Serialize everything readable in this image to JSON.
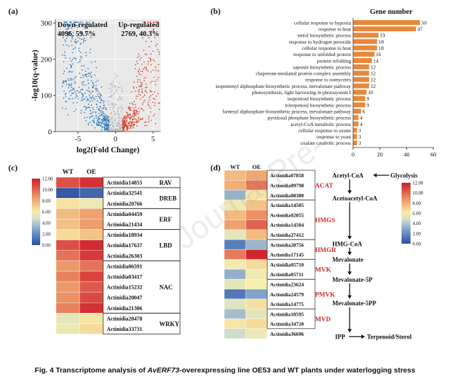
{
  "chart_data": [
    {
      "panel_label": "(a)",
      "type": "scatter",
      "xlabel": "log2(Fold Change)",
      "ylabel": "-log10(q-value)",
      "xlim": [
        -8,
        6
      ],
      "ylim": [
        0,
        310
      ],
      "xticks": [
        "-5",
        "0",
        "5"
      ],
      "yticks": [
        "0",
        "100",
        "200",
        "300"
      ],
      "groups": [
        {
          "name": "Down-regulated",
          "count": "4096",
          "percent": "59.7%",
          "color": "#2b7bc1"
        },
        {
          "name": "Up-regulated",
          "count": "2769",
          "percent": "40.3%",
          "color": "#d9452f"
        }
      ],
      "neutral_color": "#b8b8b8"
    },
    {
      "panel_label": "(b)",
      "type": "bar",
      "title": "Gene number",
      "xlim": [
        0,
        60
      ],
      "xticks": [
        "0",
        "20",
        "40",
        "60"
      ],
      "bar_color": "#e8883a",
      "categories": [
        "cellular response to hypoxia",
        "response to heat",
        "sterol biosynthetic process",
        "response to hydrogen peroxide",
        "cellular response to heat",
        "response to unfolded protein",
        "protein refolding",
        "saponin biosynthetic process",
        "chaperone-mediated protein complex assembly",
        "response to oomycetes",
        "isopentenyl diphosphate biosynthetic process, mevalonate pathway",
        "photosynthesis, light harvesting in photosystem I",
        "isoprenoid biosynthetic process",
        "triterpenoid biosynthetic process",
        "farnesyl diphosphate biosynthetic process, mevalonate pathway",
        "pyridoxal phosphate biosynthetic process",
        "acetyl-CoA metabolic process",
        "cellular response to ozone",
        "response to yeast",
        "oxalate catabolic process"
      ],
      "values": [
        50,
        47,
        19,
        18,
        18,
        16,
        14,
        12,
        12,
        12,
        12,
        10,
        9,
        9,
        6,
        4,
        4,
        3,
        3,
        3
      ]
    },
    {
      "panel_label": "(c)",
      "type": "heatmap",
      "columns": [
        "WT",
        "OE"
      ],
      "colorbar_ticks": [
        "12.00",
        "10.00",
        "8.00",
        "6.00",
        "4.00",
        "2.00",
        "0.00"
      ],
      "color_range": [
        0,
        12
      ],
      "rows": [
        {
          "gene": "Actinidia14855",
          "values": [
            10.5,
            11.5
          ]
        },
        {
          "gene": "Actinidia32541",
          "values": [
            0.3,
            0.8
          ]
        },
        {
          "gene": "Actinidia20766",
          "values": [
            6.3,
            5.6
          ]
        },
        {
          "gene": "Actinidia04459",
          "values": [
            7.6,
            8.4
          ]
        },
        {
          "gene": "Actinidia21434",
          "values": [
            7.4,
            8.5
          ]
        },
        {
          "gene": "Actinidia18934",
          "values": [
            6.6,
            7.3
          ]
        },
        {
          "gene": "Actinidia17637",
          "values": [
            10.6,
            11.7
          ]
        },
        {
          "gene": "Actinidia26303",
          "values": [
            9.6,
            11.2
          ]
        },
        {
          "gene": "Actinidia06591",
          "values": [
            8.6,
            9.6
          ]
        },
        {
          "gene": "Actinidia03417",
          "values": [
            9.2,
            10.9
          ]
        },
        {
          "gene": "Actinidia15232",
          "values": [
            8.6,
            10.3
          ]
        },
        {
          "gene": "Actinidia20047",
          "values": [
            8.8,
            10.8
          ]
        },
        {
          "gene": "Actinidia21306",
          "values": [
            9.2,
            11.5
          ]
        },
        {
          "gene": "Actinidia28478",
          "values": [
            5.4,
            6.2
          ]
        },
        {
          "gene": "Actinidia33731",
          "values": [
            5.6,
            6.6
          ]
        }
      ],
      "families": [
        {
          "name": "RAV",
          "start": 0,
          "end": 0
        },
        {
          "name": "DREB",
          "start": 1,
          "end": 2
        },
        {
          "name": "ERF",
          "start": 3,
          "end": 4
        },
        {
          "name": "LBD",
          "start": 5,
          "end": 7
        },
        {
          "name": "NAC",
          "start": 8,
          "end": 12
        },
        {
          "name": "WRKY",
          "start": 13,
          "end": 14
        }
      ]
    },
    {
      "panel_label": "(d)",
      "type": "heatmap",
      "columns": [
        "WT",
        "OE"
      ],
      "colorbar_ticks": [
        "12.00",
        "10.00",
        "8.00",
        "6.00",
        "4.00",
        "2.00",
        "0.00"
      ],
      "color_range": [
        0,
        12
      ],
      "rows": [
        {
          "gene": "Actinidia07858",
          "values": [
            7.6,
            8.2
          ]
        },
        {
          "gene": "Actinidia09798",
          "values": [
            8.0,
            9.6
          ]
        },
        {
          "gene": "Actinidia08380",
          "values": [
            3.3,
            6.2
          ]
        },
        {
          "gene": "Actinidia14505",
          "values": [
            5.8,
            7.3
          ]
        },
        {
          "gene": "Actinidia02055",
          "values": [
            7.6,
            8.8
          ]
        },
        {
          "gene": "Actinidia14504",
          "values": [
            8.4,
            10.0
          ]
        },
        {
          "gene": "Actinidia27412",
          "values": [
            5.4,
            7.6
          ]
        },
        {
          "gene": "Actinidia28756",
          "values": [
            1.6,
            3.4
          ]
        },
        {
          "gene": "Actinidia17145",
          "values": [
            9.4,
            11.8
          ]
        },
        {
          "gene": "Actinidia05710",
          "values": [
            5.8,
            6.6
          ]
        },
        {
          "gene": "Actinidia05711",
          "values": [
            3.2,
            5.8
          ]
        },
        {
          "gene": "Actinidia23624",
          "values": [
            5.4,
            6.0
          ]
        },
        {
          "gene": "Actinidia24579",
          "values": [
            1.4,
            2.8
          ]
        },
        {
          "gene": "Actinidia14775",
          "values": [
            5.2,
            6.4
          ]
        },
        {
          "gene": "Actinidia18595",
          "values": [
            3.6,
            5.4
          ]
        },
        {
          "gene": "Actinidia34720",
          "values": [
            6.2,
            6.6
          ]
        },
        {
          "gene": "Actinidia36696",
          "values": [
            4.6,
            5.6
          ]
        }
      ],
      "enzymes": [
        {
          "name": "ACAT",
          "start": 0,
          "end": 2
        },
        {
          "name": "HMGS",
          "start": 3,
          "end": 6
        },
        {
          "name": "HMGR",
          "start": 7,
          "end": 8
        },
        {
          "name": "MVK",
          "start": 9,
          "end": 10
        },
        {
          "name": "PMVK",
          "start": 11,
          "end": 13
        },
        {
          "name": "MVD",
          "start": 14,
          "end": 15
        }
      ],
      "pathway": [
        "Acetyl-CoA",
        "Acetoacetyl-CoA",
        "HMG-CoA",
        "Mevalonate",
        "Mevalonate-5P",
        "Mevalonate-5PP",
        "IPP"
      ],
      "pathway_inputs": {
        "glycolysis": "Glycolysis",
        "end_product": "Terpenoid/Sterol"
      },
      "enzyme_color": "#d42b2b"
    }
  ],
  "caption": {
    "prefix": "Fig. 4   Transcriptome analysis of ",
    "gene": "AvERF73",
    "suffix": "-overexpressing line OE53 and WT plants under waterlogging stress"
  },
  "watermark": "Journal Pre-"
}
